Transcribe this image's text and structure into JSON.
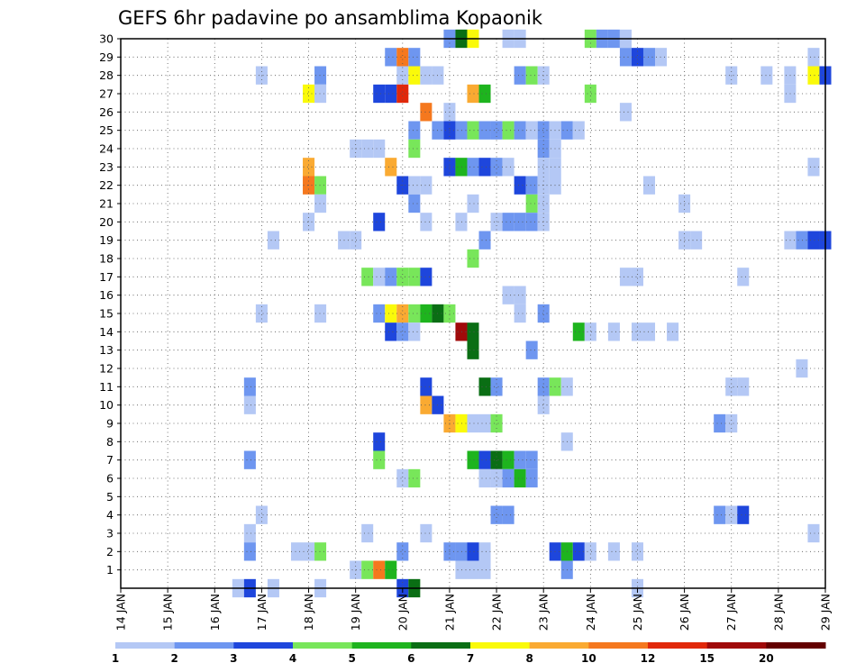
{
  "chart_data": {
    "type": "heatmap",
    "title": "GEFS 6hr padavine po ansamblima Kopaonik",
    "xlabel": "",
    "ylabel": "",
    "x_tick_labels": [
      "14 JAN",
      "15 JAN",
      "16 JAN",
      "17 JAN",
      "18 JAN",
      "19 JAN",
      "20 JAN",
      "21 JAN",
      "22 JAN",
      "23 JAN",
      "24 JAN",
      "25 JAN",
      "26 JAN",
      "27 JAN",
      "28 JAN",
      "29 JAN"
    ],
    "y_tick_labels": [
      "1",
      "2",
      "3",
      "4",
      "5",
      "6",
      "7",
      "8",
      "9",
      "10",
      "11",
      "12",
      "13",
      "14",
      "15",
      "16",
      "17",
      "18",
      "19",
      "20",
      "21",
      "22",
      "23",
      "24",
      "25",
      "26",
      "27",
      "28",
      "29",
      "30"
    ],
    "xlim": [
      0,
      60
    ],
    "ylim": [
      0,
      30
    ],
    "grid": true,
    "legend": {
      "placement": "bottom",
      "thresholds": [
        "1",
        "2",
        "3",
        "4",
        "5",
        "6",
        "7",
        "8",
        "10",
        "12",
        "15",
        "20"
      ],
      "colors": [
        "#b4c8f5",
        "#6e96f0",
        "#1e46dc",
        "#78e65a",
        "#1eb41e",
        "#0a6e14",
        "#fafa0a",
        "#faaa32",
        "#f5781e",
        "#e1280a",
        "#a00a0a",
        "#640000"
      ]
    },
    "cells": [
      [
        30,
        28,
        2
      ],
      [
        30,
        29,
        6
      ],
      [
        30,
        30,
        7
      ],
      [
        30,
        33,
        1
      ],
      [
        30,
        34,
        1
      ],
      [
        30,
        40,
        4
      ],
      [
        30,
        41,
        2
      ],
      [
        30,
        42,
        2
      ],
      [
        30,
        43,
        1
      ],
      [
        29,
        23,
        2
      ],
      [
        29,
        24,
        9
      ],
      [
        29,
        25,
        2
      ],
      [
        29,
        43,
        2
      ],
      [
        29,
        44,
        3
      ],
      [
        29,
        45,
        2
      ],
      [
        29,
        46,
        1
      ],
      [
        29,
        59,
        1
      ],
      [
        28,
        12,
        1
      ],
      [
        28,
        17,
        2
      ],
      [
        28,
        24,
        1
      ],
      [
        28,
        25,
        7
      ],
      [
        28,
        26,
        1
      ],
      [
        28,
        27,
        1
      ],
      [
        28,
        34,
        2
      ],
      [
        28,
        35,
        4
      ],
      [
        28,
        36,
        1
      ],
      [
        28,
        52,
        1
      ],
      [
        28,
        55,
        1
      ],
      [
        28,
        57,
        1
      ],
      [
        28,
        59,
        7
      ],
      [
        28,
        60,
        3
      ],
      [
        27,
        16,
        7
      ],
      [
        27,
        17,
        1
      ],
      [
        27,
        22,
        3
      ],
      [
        27,
        23,
        3
      ],
      [
        27,
        24,
        10
      ],
      [
        27,
        30,
        8
      ],
      [
        27,
        31,
        5
      ],
      [
        27,
        40,
        4
      ],
      [
        27,
        57,
        1
      ],
      [
        26,
        26,
        9
      ],
      [
        26,
        28,
        1
      ],
      [
        26,
        43,
        1
      ],
      [
        25,
        25,
        2
      ],
      [
        25,
        27,
        2
      ],
      [
        25,
        28,
        3
      ],
      [
        25,
        29,
        2
      ],
      [
        25,
        30,
        4
      ],
      [
        25,
        31,
        2
      ],
      [
        25,
        32,
        2
      ],
      [
        25,
        33,
        4
      ],
      [
        25,
        34,
        2
      ],
      [
        25,
        35,
        1
      ],
      [
        25,
        36,
        2
      ],
      [
        25,
        37,
        1
      ],
      [
        25,
        38,
        2
      ],
      [
        25,
        39,
        1
      ],
      [
        24,
        20,
        1
      ],
      [
        24,
        21,
        1
      ],
      [
        24,
        22,
        1
      ],
      [
        24,
        25,
        4
      ],
      [
        24,
        36,
        2
      ],
      [
        24,
        37,
        1
      ],
      [
        23,
        16,
        8
      ],
      [
        23,
        23,
        8
      ],
      [
        23,
        28,
        3
      ],
      [
        23,
        29,
        5
      ],
      [
        23,
        30,
        2
      ],
      [
        23,
        31,
        3
      ],
      [
        23,
        32,
        2
      ],
      [
        23,
        33,
        1
      ],
      [
        23,
        36,
        1
      ],
      [
        23,
        37,
        1
      ],
      [
        23,
        59,
        1
      ],
      [
        22,
        16,
        9
      ],
      [
        22,
        17,
        4
      ],
      [
        22,
        24,
        3
      ],
      [
        22,
        25,
        1
      ],
      [
        22,
        26,
        1
      ],
      [
        22,
        34,
        3
      ],
      [
        22,
        35,
        2
      ],
      [
        22,
        36,
        1
      ],
      [
        22,
        37,
        1
      ],
      [
        22,
        45,
        1
      ],
      [
        21,
        17,
        1
      ],
      [
        21,
        25,
        2
      ],
      [
        21,
        30,
        1
      ],
      [
        21,
        35,
        4
      ],
      [
        21,
        36,
        1
      ],
      [
        21,
        48,
        1
      ],
      [
        20,
        16,
        1
      ],
      [
        20,
        22,
        3
      ],
      [
        20,
        26,
        1
      ],
      [
        20,
        29,
        1
      ],
      [
        20,
        32,
        1
      ],
      [
        20,
        33,
        2
      ],
      [
        20,
        34,
        2
      ],
      [
        20,
        35,
        2
      ],
      [
        20,
        36,
        1
      ],
      [
        19,
        13,
        1
      ],
      [
        19,
        19,
        1
      ],
      [
        19,
        20,
        1
      ],
      [
        19,
        31,
        2
      ],
      [
        19,
        48,
        1
      ],
      [
        19,
        49,
        1
      ],
      [
        19,
        57,
        1
      ],
      [
        19,
        58,
        2
      ],
      [
        19,
        59,
        3
      ],
      [
        19,
        60,
        3
      ],
      [
        18,
        30,
        4
      ],
      [
        17,
        21,
        4
      ],
      [
        17,
        22,
        1
      ],
      [
        17,
        23,
        2
      ],
      [
        17,
        24,
        4
      ],
      [
        17,
        25,
        4
      ],
      [
        17,
        26,
        3
      ],
      [
        17,
        43,
        1
      ],
      [
        17,
        44,
        1
      ],
      [
        17,
        53,
        1
      ],
      [
        16,
        33,
        1
      ],
      [
        16,
        34,
        1
      ],
      [
        15,
        12,
        1
      ],
      [
        15,
        17,
        1
      ],
      [
        15,
        22,
        2
      ],
      [
        15,
        23,
        7
      ],
      [
        15,
        24,
        8
      ],
      [
        15,
        25,
        4
      ],
      [
        15,
        26,
        5
      ],
      [
        15,
        27,
        6
      ],
      [
        15,
        28,
        4
      ],
      [
        15,
        34,
        1
      ],
      [
        15,
        36,
        2
      ],
      [
        14,
        23,
        3
      ],
      [
        14,
        24,
        2
      ],
      [
        14,
        25,
        1
      ],
      [
        14,
        29,
        11
      ],
      [
        14,
        30,
        6
      ],
      [
        14,
        39,
        5
      ],
      [
        14,
        40,
        1
      ],
      [
        14,
        42,
        1
      ],
      [
        14,
        44,
        1
      ],
      [
        14,
        45,
        1
      ],
      [
        14,
        47,
        1
      ],
      [
        13,
        30,
        6
      ],
      [
        13,
        35,
        2
      ],
      [
        12,
        58,
        1
      ],
      [
        11,
        11,
        2
      ],
      [
        11,
        26,
        3
      ],
      [
        11,
        31,
        6
      ],
      [
        11,
        32,
        2
      ],
      [
        11,
        36,
        2
      ],
      [
        11,
        37,
        4
      ],
      [
        11,
        38,
        1
      ],
      [
        11,
        52,
        1
      ],
      [
        11,
        53,
        1
      ],
      [
        10,
        11,
        1
      ],
      [
        10,
        26,
        8
      ],
      [
        10,
        27,
        3
      ],
      [
        10,
        36,
        1
      ],
      [
        9,
        28,
        8
      ],
      [
        9,
        29,
        7
      ],
      [
        9,
        30,
        1
      ],
      [
        9,
        31,
        1
      ],
      [
        9,
        32,
        4
      ],
      [
        9,
        51,
        2
      ],
      [
        9,
        52,
        1
      ],
      [
        8,
        22,
        3
      ],
      [
        8,
        38,
        1
      ],
      [
        7,
        11,
        2
      ],
      [
        7,
        22,
        4
      ],
      [
        7,
        30,
        5
      ],
      [
        7,
        31,
        3
      ],
      [
        7,
        32,
        6
      ],
      [
        7,
        33,
        5
      ],
      [
        7,
        34,
        2
      ],
      [
        7,
        35,
        2
      ],
      [
        6,
        24,
        1
      ],
      [
        6,
        25,
        4
      ],
      [
        6,
        31,
        1
      ],
      [
        6,
        32,
        1
      ],
      [
        6,
        33,
        2
      ],
      [
        6,
        34,
        5
      ],
      [
        6,
        35,
        2
      ],
      [
        4,
        12,
        1
      ],
      [
        4,
        32,
        2
      ],
      [
        4,
        33,
        2
      ],
      [
        4,
        51,
        2
      ],
      [
        4,
        52,
        1
      ],
      [
        4,
        53,
        3
      ],
      [
        3,
        11,
        1
      ],
      [
        3,
        21,
        1
      ],
      [
        3,
        26,
        1
      ],
      [
        3,
        59,
        1
      ],
      [
        2,
        11,
        2
      ],
      [
        2,
        15,
        1
      ],
      [
        2,
        16,
        1
      ],
      [
        2,
        17,
        4
      ],
      [
        2,
        24,
        2
      ],
      [
        2,
        28,
        2
      ],
      [
        2,
        29,
        2
      ],
      [
        2,
        30,
        3
      ],
      [
        2,
        31,
        1
      ],
      [
        2,
        37,
        3
      ],
      [
        2,
        38,
        5
      ],
      [
        2,
        39,
        3
      ],
      [
        2,
        40,
        1
      ],
      [
        2,
        42,
        1
      ],
      [
        2,
        44,
        1
      ],
      [
        1,
        20,
        1
      ],
      [
        1,
        21,
        4
      ],
      [
        1,
        22,
        9
      ],
      [
        1,
        23,
        5
      ],
      [
        1,
        29,
        1
      ],
      [
        1,
        30,
        1
      ],
      [
        1,
        31,
        1
      ],
      [
        1,
        38,
        2
      ],
      [
        0,
        10,
        1
      ],
      [
        0,
        11,
        3
      ],
      [
        0,
        13,
        1
      ],
      [
        0,
        17,
        1
      ],
      [
        0,
        24,
        3
      ],
      [
        0,
        25,
        6
      ],
      [
        0,
        44,
        1
      ]
    ]
  }
}
